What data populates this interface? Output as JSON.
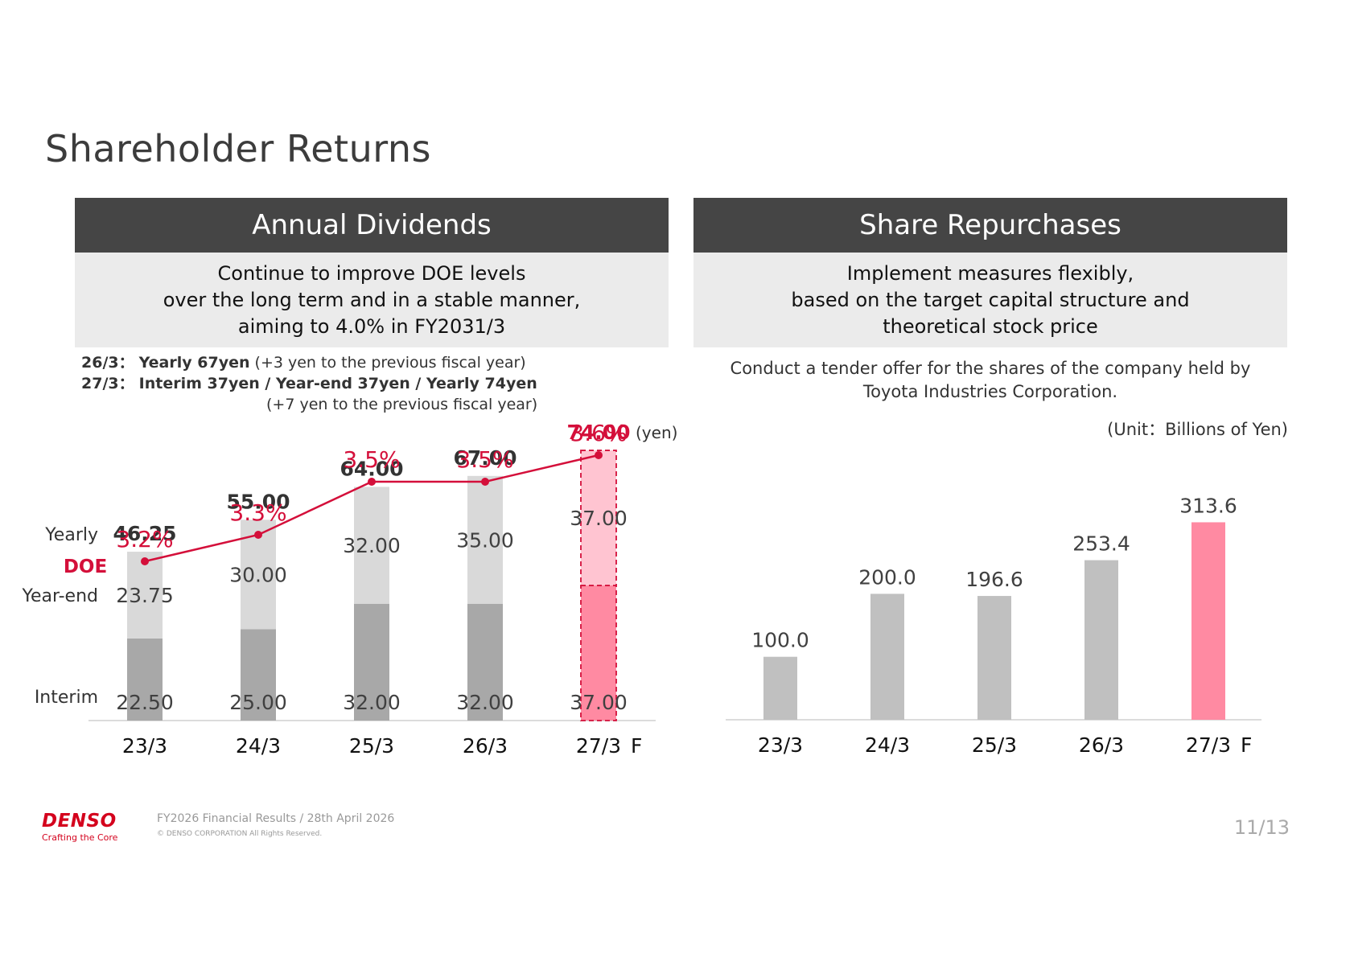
{
  "page_title": "Shareholder Returns",
  "left_panel": {
    "header": "Annual Dividends",
    "policy_lines": [
      "Continue to improve DOE levels",
      "over the long term and in a stable manner,",
      "aiming to 4.0% in FY2031/3"
    ],
    "note1_label": "26/3：",
    "note1_bold": "Yearly 67yen",
    "note1_rest": " (+3 yen to the previous fiscal year)",
    "note2_label": "27/3：",
    "note2_bold": "Interim 37yen / Year-end 37yen / Yearly 74yen",
    "note3": "(+7 yen to the previous fiscal year)"
  },
  "right_panel": {
    "header": "Share Repurchases",
    "policy_lines": [
      "Implement measures flexibly,",
      "based on the target capital structure and",
      "theoretical stock price"
    ],
    "tender_lines": [
      "Conduct a tender offer for the shares of the company held by",
      "Toyota Industries Corporation."
    ],
    "unit": "(Unit：Billions of Yen)"
  },
  "colors": {
    "header_bg": "#454545",
    "sub_bg": "#ebebeb",
    "accent_red": "#d40f3a",
    "bar_interim": "#a8a8a8",
    "bar_yearend": "#d9d9d9",
    "forecast_interim": "#ff8aa2",
    "forecast_yearend": "#ffc4d1",
    "repurchase_bar": "#c0c0c0",
    "repurchase_forecast": "#ff8aa2"
  },
  "chart_data": [
    {
      "type": "bar",
      "stacked": true,
      "categories": [
        "23/3",
        "24/3",
        "25/3",
        "26/3",
        "27/3"
      ],
      "forecast_marker": "F",
      "series": [
        {
          "name": "Interim",
          "values": [
            22.5,
            25.0,
            32.0,
            32.0,
            37.0
          ]
        },
        {
          "name": "Year-end",
          "values": [
            23.75,
            30.0,
            32.0,
            35.0,
            37.0
          ]
        }
      ],
      "interim_labels": [
        "22.50",
        "25.00",
        "32.00",
        "32.00",
        "37.00"
      ],
      "yearend_labels": [
        "23.75",
        "30.00",
        "32.00",
        "35.00",
        "37.00"
      ],
      "totals": [
        46.25,
        55.0,
        64.0,
        67.0,
        74.0
      ],
      "total_labels": [
        "46.25",
        "55.00",
        "64.00",
        "67.00",
        "74.00"
      ],
      "row_labels": {
        "yearly": "Yearly",
        "yearend": "Year-end",
        "interim": "Interim"
      },
      "unit_label": "(yen)",
      "doe": {
        "label": "DOE",
        "values": [
          3.2,
          3.3,
          3.5,
          3.5,
          3.6
        ],
        "labels": [
          "3.2%",
          "3.3%",
          "3.5%",
          "3.5%",
          "3.6%"
        ]
      }
    },
    {
      "type": "bar",
      "categories": [
        "23/3",
        "24/3",
        "25/3",
        "26/3",
        "27/3"
      ],
      "forecast_marker": "F",
      "values": [
        100.0,
        200.0,
        196.6,
        253.4,
        313.6
      ],
      "value_labels": [
        "100.0",
        "200.0",
        "196.6",
        "253.4",
        "313.6"
      ],
      "unit": "Billions of Yen"
    }
  ],
  "footer": {
    "brand": "DENSO",
    "tagline": "Crafting the Core",
    "line1": "FY2026 Financial Results / 28th April 2026",
    "line2": "© DENSO CORPORATION All Rights Reserved.",
    "page": "11/13"
  }
}
